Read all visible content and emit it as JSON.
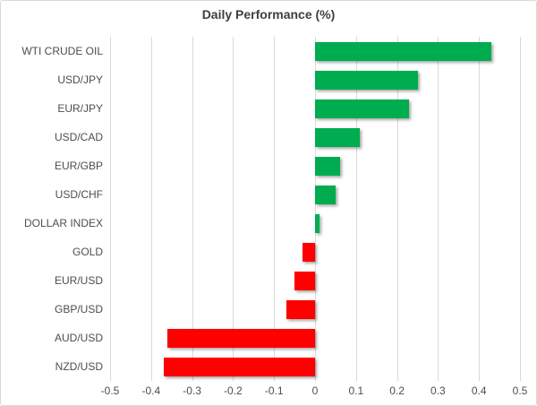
{
  "chart_data": {
    "type": "bar",
    "orientation": "horizontal",
    "title": "Daily Performance (%)",
    "categories": [
      "WTI CRUDE OIL",
      "USD/JPY",
      "EUR/JPY",
      "USD/CAD",
      "EUR/GBP",
      "USD/CHF",
      "DOLLAR INDEX",
      "GOLD",
      "EUR/USD",
      "GBP/USD",
      "AUD/USD",
      "NZD/USD"
    ],
    "values": [
      0.43,
      0.25,
      0.23,
      0.11,
      0.06,
      0.05,
      0.01,
      -0.03,
      -0.05,
      -0.07,
      -0.36,
      -0.37
    ],
    "xlim": [
      -0.5,
      0.5
    ],
    "x_ticks": [
      -0.5,
      -0.4,
      -0.3,
      -0.2,
      -0.1,
      0,
      0.1,
      0.2,
      0.3,
      0.4,
      0.5
    ],
    "x_tick_labels": [
      "-0.5",
      "-0.4",
      "-0.3",
      "-0.2",
      "-0.1",
      "0",
      "0.1",
      "0.2",
      "0.3",
      "0.4",
      "0.5"
    ],
    "xlabel": "",
    "ylabel": "",
    "grid": "vertical-major-on",
    "legend": "none",
    "colors": {
      "positive_bar": "#00AC50",
      "negative_bar": "#FF0000",
      "gridline": "#D9D9D9",
      "title_text": "#3F3F3F",
      "axis_text": "#4D4D4D",
      "frame_border": "#D9D9D9"
    }
  }
}
